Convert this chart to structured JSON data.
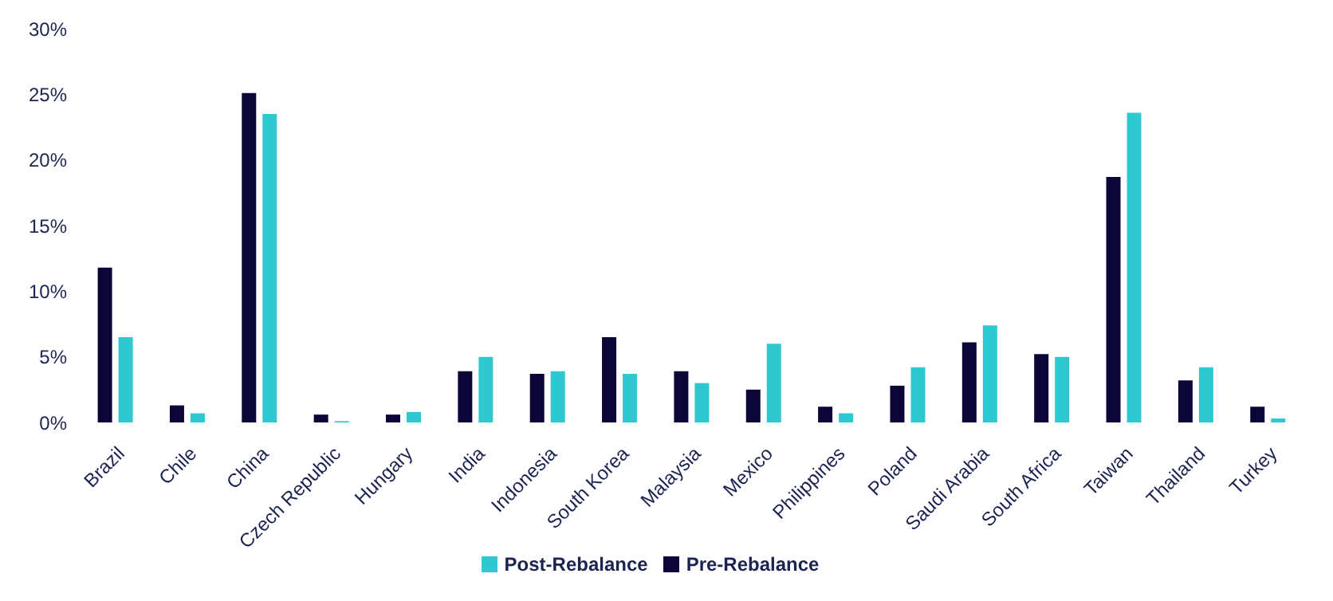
{
  "chart_data": {
    "type": "bar",
    "categories": [
      "Brazil",
      "Chile",
      "China",
      "Czech Republic",
      "Hungary",
      "India",
      "Indonesia",
      "South Korea",
      "Malaysia",
      "Mexico",
      "Philippines",
      "Poland",
      "Saudi Arabia",
      "South Africa",
      "Taiwan",
      "Thailand",
      "Turkey"
    ],
    "series": [
      {
        "name": "Pre-Rebalance",
        "color": "#0b0538",
        "values": [
          11.8,
          1.3,
          25.1,
          0.6,
          0.6,
          3.9,
          3.7,
          6.5,
          3.9,
          2.5,
          1.2,
          2.8,
          6.1,
          5.2,
          18.7,
          3.2,
          1.2
        ]
      },
      {
        "name": "Post-Rebalance",
        "color": "#2ec8d0",
        "values": [
          6.5,
          0.7,
          23.5,
          0.1,
          0.8,
          5.0,
          3.9,
          3.7,
          3.0,
          6.0,
          0.7,
          4.2,
          7.4,
          5.0,
          23.6,
          4.2,
          0.3
        ]
      }
    ],
    "ylim": [
      0,
      30
    ],
    "yticks": [
      {
        "value": 0,
        "label": "0%"
      },
      {
        "value": 5,
        "label": "5%"
      },
      {
        "value": 10,
        "label": "10%"
      },
      {
        "value": 15,
        "label": "15%"
      },
      {
        "value": 20,
        "label": "20%"
      },
      {
        "value": 25,
        "label": "25%"
      },
      {
        "value": 30,
        "label": "30%"
      }
    ],
    "grid": false,
    "legend": "bottom"
  }
}
